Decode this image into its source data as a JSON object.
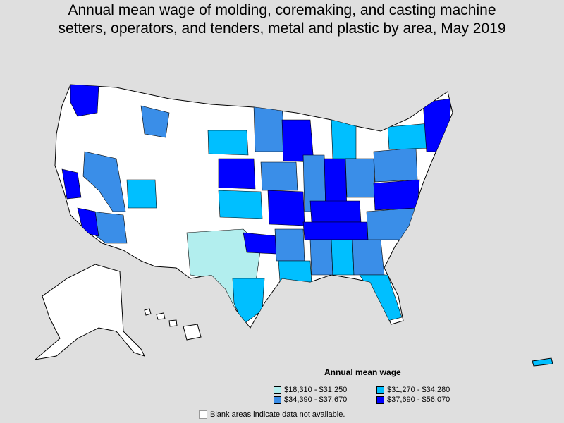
{
  "title_line1": "Annual mean wage of molding, coremaking, and casting machine",
  "title_line2": "setters, operators, and tenders, metal and plastic by area, May 2019",
  "legend": {
    "title": "Annual mean wage",
    "items": [
      {
        "label": "$18,310 - $31,250",
        "color": "#b2eeee"
      },
      {
        "label": "$31,270 - $34,280",
        "color": "#00bfff"
      },
      {
        "label": "$34,390 - $37,670",
        "color": "#3a8ee8"
      },
      {
        "label": "$37,690 - $56,070",
        "color": "#0000ff"
      }
    ],
    "blank_note": "Blank areas indicate data not available."
  },
  "colors": {
    "background": "#dfdfdf",
    "no_data": "#ffffff",
    "border": "#000000"
  }
}
